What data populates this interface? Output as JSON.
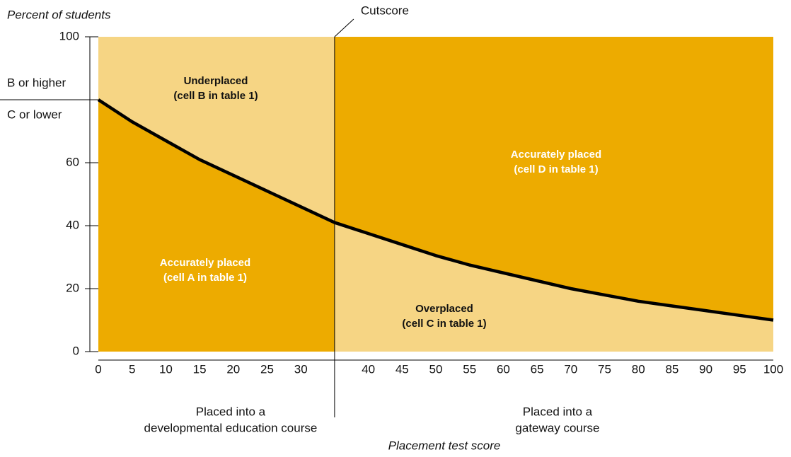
{
  "chart_data": {
    "type": "line",
    "y_label": "Percent of students",
    "x_label": "Placement test score",
    "x": [
      0,
      5,
      10,
      15,
      20,
      25,
      30,
      35,
      40,
      45,
      50,
      55,
      60,
      65,
      70,
      75,
      80,
      85,
      90,
      95,
      100
    ],
    "values": [
      80,
      73,
      67,
      61,
      56,
      51,
      46,
      41,
      37.5,
      34,
      30.5,
      27.5,
      25,
      22.5,
      20,
      18,
      16,
      14.5,
      13,
      11.5,
      10
    ],
    "color": "#000000",
    "xlim": [
      0,
      100
    ],
    "ylim": [
      0,
      100
    ],
    "xticks": [
      0,
      5,
      10,
      15,
      20,
      25,
      30,
      40,
      45,
      50,
      55,
      60,
      65,
      70,
      75,
      80,
      85,
      90,
      95,
      100
    ],
    "yticks": [
      0,
      20,
      40,
      60,
      100
    ],
    "threshold": {
      "value": 80,
      "above_label": "B or higher",
      "below_label": "C or lower"
    },
    "cutscore": {
      "value": 35,
      "label": "Cutscore"
    },
    "fill_light": "#f6d584",
    "fill_dark": "#edab00",
    "group_labels": {
      "left": [
        "Placed into a",
        "developmental education course"
      ],
      "right": [
        "Placed into a",
        "gateway course"
      ]
    },
    "annotations": [
      {
        "lines": [
          "Underplaced",
          "(cell B in table 1)"
        ],
        "color": "#111111"
      },
      {
        "lines": [
          "Accurately placed",
          "(cell A in table 1)"
        ],
        "color": "#ffffff"
      },
      {
        "lines": [
          "Accurately placed",
          "(cell D in table 1)"
        ],
        "color": "#ffffff"
      },
      {
        "lines": [
          "Overplaced",
          "(cell C in table 1)"
        ],
        "color": "#111111"
      }
    ]
  }
}
